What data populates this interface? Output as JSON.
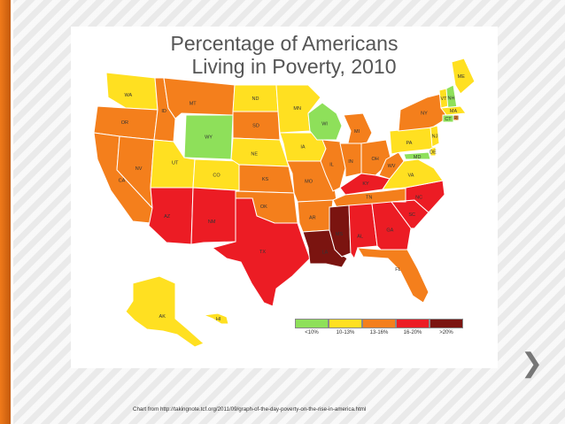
{
  "title_line1": "Percentage of Americans",
  "title_line2": "Living in Poverty, 2010",
  "caption": "Chart from http://takingnote.tcf.org/2011/09/graph-of-the-day-poverty-on-the-rise-in-america.html",
  "colors": {
    "lt10": "#8ee05a",
    "b10_13": "#ffe021",
    "b13_16": "#f47f1c",
    "b16_20": "#ec1c24",
    "gt20": "#7b1410"
  },
  "legend": [
    {
      "label": "<10%",
      "color": "#8ee05a"
    },
    {
      "label": "10-13%",
      "color": "#ffe021"
    },
    {
      "label": "13-16%",
      "color": "#f47f1c"
    },
    {
      "label": "16-20%",
      "color": "#ec1c24"
    },
    {
      "label": ">20%",
      "color": "#7b1410"
    }
  ],
  "states": [
    {
      "abbr": "WA",
      "bin": "b10_13"
    },
    {
      "abbr": "OR",
      "bin": "b13_16"
    },
    {
      "abbr": "CA",
      "bin": "b13_16"
    },
    {
      "abbr": "NV",
      "bin": "b13_16"
    },
    {
      "abbr": "ID",
      "bin": "b13_16"
    },
    {
      "abbr": "MT",
      "bin": "b13_16"
    },
    {
      "abbr": "WY",
      "bin": "lt10"
    },
    {
      "abbr": "UT",
      "bin": "b10_13"
    },
    {
      "abbr": "CO",
      "bin": "b10_13"
    },
    {
      "abbr": "AZ",
      "bin": "b16_20"
    },
    {
      "abbr": "NM",
      "bin": "b16_20"
    },
    {
      "abbr": "ND",
      "bin": "b10_13"
    },
    {
      "abbr": "SD",
      "bin": "b13_16"
    },
    {
      "abbr": "NE",
      "bin": "b10_13"
    },
    {
      "abbr": "KS",
      "bin": "b13_16"
    },
    {
      "abbr": "OK",
      "bin": "b13_16"
    },
    {
      "abbr": "TX",
      "bin": "b16_20"
    },
    {
      "abbr": "MN",
      "bin": "b10_13"
    },
    {
      "abbr": "IA",
      "bin": "b10_13"
    },
    {
      "abbr": "MO",
      "bin": "b13_16"
    },
    {
      "abbr": "AR",
      "bin": "b13_16"
    },
    {
      "abbr": "LA",
      "bin": "gt20"
    },
    {
      "abbr": "WI",
      "bin": "lt10"
    },
    {
      "abbr": "IL",
      "bin": "b13_16"
    },
    {
      "abbr": "MI",
      "bin": "b13_16"
    },
    {
      "abbr": "IN",
      "bin": "b13_16"
    },
    {
      "abbr": "OH",
      "bin": "b13_16"
    },
    {
      "abbr": "KY",
      "bin": "b16_20"
    },
    {
      "abbr": "TN",
      "bin": "b13_16"
    },
    {
      "abbr": "MS",
      "bin": "gt20"
    },
    {
      "abbr": "AL",
      "bin": "b16_20"
    },
    {
      "abbr": "GA",
      "bin": "b16_20"
    },
    {
      "abbr": "FL",
      "bin": "b13_16"
    },
    {
      "abbr": "SC",
      "bin": "b16_20"
    },
    {
      "abbr": "NC",
      "bin": "b16_20"
    },
    {
      "abbr": "VA",
      "bin": "b10_13"
    },
    {
      "abbr": "WV",
      "bin": "b13_16"
    },
    {
      "abbr": "PA",
      "bin": "b10_13"
    },
    {
      "abbr": "NY",
      "bin": "b13_16"
    },
    {
      "abbr": "VT",
      "bin": "b10_13"
    },
    {
      "abbr": "NH",
      "bin": "lt10"
    },
    {
      "abbr": "ME",
      "bin": "b10_13"
    },
    {
      "abbr": "MA",
      "bin": "b10_13"
    },
    {
      "abbr": "CT",
      "bin": "lt10"
    },
    {
      "abbr": "RI",
      "bin": "b13_16"
    },
    {
      "abbr": "NJ",
      "bin": "b10_13"
    },
    {
      "abbr": "DE",
      "bin": "b10_13"
    },
    {
      "abbr": "MD",
      "bin": "lt10"
    },
    {
      "abbr": "AK",
      "bin": "b10_13"
    },
    {
      "abbr": "HI",
      "bin": "b10_13"
    }
  ]
}
